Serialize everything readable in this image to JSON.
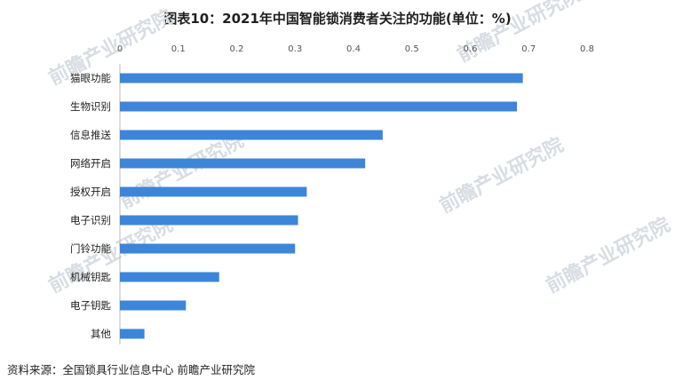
{
  "title": "图表10：2021年中国智能锁消费者关注的功能(单位：%)",
  "source": "资料来源：全国锁具行业信息中心 前瞻产业研究院",
  "watermark": "前瞻产业研究院",
  "colors": {
    "bar": "#3d85d8",
    "axis": "#bbbbbb",
    "text": "#222222"
  },
  "chart_data": {
    "type": "bar",
    "orientation": "horizontal",
    "title": "图表10：2021年中国智能锁消费者关注的功能(单位：%)",
    "xlabel": "",
    "ylabel": "",
    "xlim": [
      0,
      0.8
    ],
    "ticks": [
      "0",
      "0.1",
      "0.2",
      "0.3",
      "0.4",
      "0.5",
      "0.6",
      "0.7",
      "0.8"
    ],
    "tick_values": [
      0,
      0.1,
      0.2,
      0.3,
      0.4,
      0.5,
      0.6,
      0.7,
      0.8
    ],
    "axis_position": "top",
    "grid": false,
    "legend": "none",
    "categories": [
      "猫眼功能",
      "生物识别",
      "信息推送",
      "网络开启",
      "授权开启",
      "电子识别",
      "门铃功能",
      "机械钥匙",
      "电子钥匙",
      "其他"
    ],
    "values": [
      0.69,
      0.68,
      0.45,
      0.42,
      0.32,
      0.305,
      0.3,
      0.17,
      0.113,
      0.042
    ]
  }
}
